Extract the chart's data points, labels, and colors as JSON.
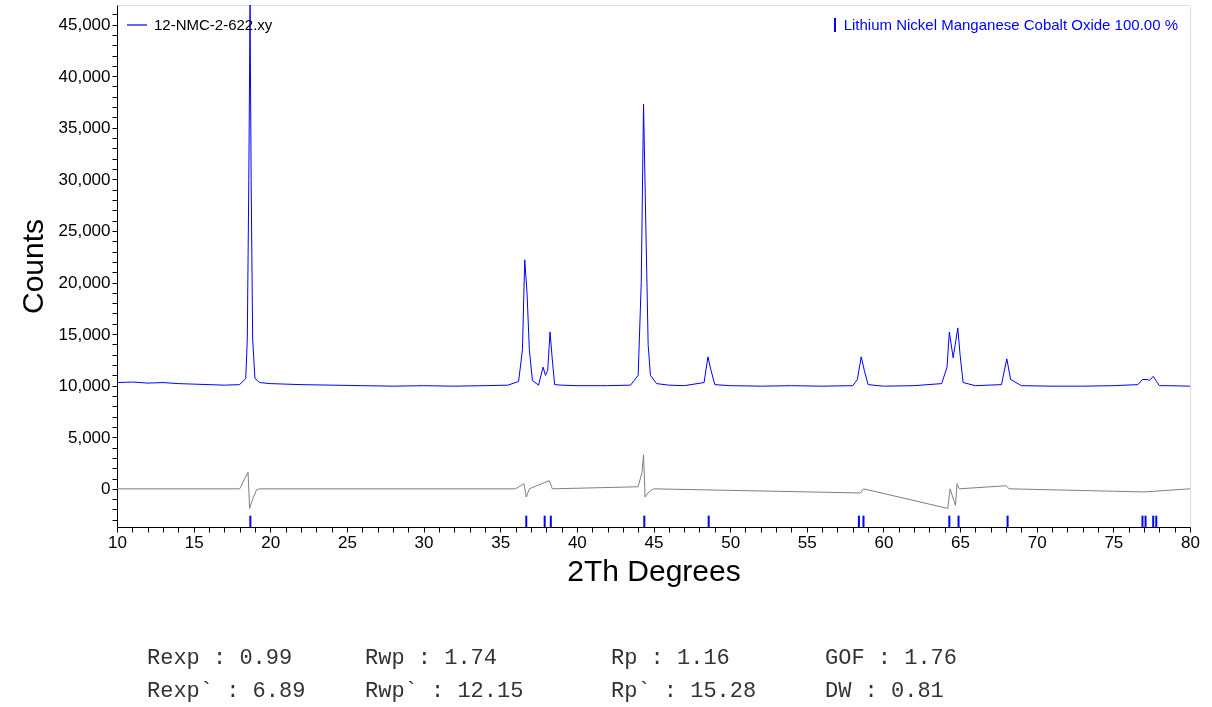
{
  "chart_data": {
    "type": "line",
    "xlabel": "2Th Degrees",
    "ylabel": "Counts",
    "xlim": [
      10,
      80
    ],
    "ylim": [
      -3700,
      46900
    ],
    "xticks": [
      10,
      {
        "value": 11,
        "label": null
      },
      {
        "value": 12,
        "label": null
      },
      {
        "value": 13,
        "label": null
      },
      {
        "value": 14,
        "label": null
      },
      15,
      {
        "value": 16,
        "label": null
      },
      {
        "value": 17,
        "label": null
      },
      {
        "value": 18,
        "label": null
      },
      {
        "value": 19,
        "label": null
      },
      20,
      {
        "value": 21,
        "label": null
      },
      {
        "value": 22,
        "label": null
      },
      {
        "value": 23,
        "label": null
      },
      {
        "value": 24,
        "label": null
      },
      25,
      {
        "value": 26,
        "label": null
      },
      {
        "value": 27,
        "label": null
      },
      {
        "value": 28,
        "label": null
      },
      {
        "value": 29,
        "label": null
      },
      30,
      {
        "value": 31,
        "label": null
      },
      {
        "value": 32,
        "label": null
      },
      {
        "value": 33,
        "label": null
      },
      {
        "value": 34,
        "label": null
      },
      35,
      {
        "value": 36,
        "label": null
      },
      {
        "value": 37,
        "label": null
      },
      {
        "value": 38,
        "label": null
      },
      {
        "value": 39,
        "label": null
      },
      40,
      {
        "value": 41,
        "label": null
      },
      {
        "value": 42,
        "label": null
      },
      {
        "value": 43,
        "label": null
      },
      {
        "value": 44,
        "label": null
      },
      45,
      {
        "value": 46,
        "label": null
      },
      {
        "value": 47,
        "label": null
      },
      {
        "value": 48,
        "label": null
      },
      {
        "value": 49,
        "label": null
      },
      50,
      {
        "value": 51,
        "label": null
      },
      {
        "value": 52,
        "label": null
      },
      {
        "value": 53,
        "label": null
      },
      {
        "value": 54,
        "label": null
      },
      55,
      {
        "value": 56,
        "label": null
      },
      {
        "value": 57,
        "label": null
      },
      {
        "value": 58,
        "label": null
      },
      {
        "value": 59,
        "label": null
      },
      60,
      {
        "value": 61,
        "label": null
      },
      {
        "value": 62,
        "label": null
      },
      {
        "value": 63,
        "label": null
      },
      {
        "value": 64,
        "label": null
      },
      65,
      {
        "value": 66,
        "label": null
      },
      {
        "value": 67,
        "label": null
      },
      {
        "value": 68,
        "label": null
      },
      {
        "value": 69,
        "label": null
      },
      70,
      {
        "value": 71,
        "label": null
      },
      {
        "value": 72,
        "label": null
      },
      {
        "value": 73,
        "label": null
      },
      {
        "value": 74,
        "label": null
      },
      75,
      {
        "value": 76,
        "label": null
      },
      {
        "value": 77,
        "label": null
      },
      {
        "value": 78,
        "label": null
      },
      {
        "value": 79,
        "label": null
      },
      80
    ],
    "yticks": [
      {
        "value": -3000,
        "label": null
      },
      {
        "value": -2000,
        "label": null
      },
      {
        "value": -1000,
        "label": null
      },
      {
        "value": 0,
        "label": "0"
      },
      {
        "value": 1000,
        "label": null
      },
      {
        "value": 2000,
        "label": null
      },
      {
        "value": 3000,
        "label": null
      },
      {
        "value": 4000,
        "label": null
      },
      {
        "value": 5000,
        "label": "5,000"
      },
      {
        "value": 6000,
        "label": null
      },
      {
        "value": 7000,
        "label": null
      },
      {
        "value": 8000,
        "label": null
      },
      {
        "value": 9000,
        "label": null
      },
      {
        "value": 10000,
        "label": "10,000"
      },
      {
        "value": 11000,
        "label": null
      },
      {
        "value": 12000,
        "label": null
      },
      {
        "value": 13000,
        "label": null
      },
      {
        "value": 14000,
        "label": null
      },
      {
        "value": 15000,
        "label": "15,000"
      },
      {
        "value": 16000,
        "label": null
      },
      {
        "value": 17000,
        "label": null
      },
      {
        "value": 18000,
        "label": null
      },
      {
        "value": 19000,
        "label": null
      },
      {
        "value": 20000,
        "label": "20,000"
      },
      {
        "value": 21000,
        "label": null
      },
      {
        "value": 22000,
        "label": null
      },
      {
        "value": 23000,
        "label": null
      },
      {
        "value": 24000,
        "label": null
      },
      {
        "value": 25000,
        "label": "25,000"
      },
      {
        "value": 26000,
        "label": null
      },
      {
        "value": 27000,
        "label": null
      },
      {
        "value": 28000,
        "label": null
      },
      {
        "value": 29000,
        "label": null
      },
      {
        "value": 30000,
        "label": "30,000"
      },
      {
        "value": 31000,
        "label": null
      },
      {
        "value": 32000,
        "label": null
      },
      {
        "value": 33000,
        "label": null
      },
      {
        "value": 34000,
        "label": null
      },
      {
        "value": 35000,
        "label": "35,000"
      },
      {
        "value": 36000,
        "label": null
      },
      {
        "value": 37000,
        "label": null
      },
      {
        "value": 38000,
        "label": null
      },
      {
        "value": 39000,
        "label": null
      },
      {
        "value": 40000,
        "label": "40,000"
      },
      {
        "value": 41000,
        "label": null
      },
      {
        "value": 42000,
        "label": null
      },
      {
        "value": 43000,
        "label": null
      },
      {
        "value": 44000,
        "label": null
      },
      {
        "value": 45000,
        "label": "45,000"
      },
      {
        "value": 46000,
        "label": null
      }
    ],
    "grid": false,
    "legend": "top left",
    "line_style": "solid",
    "marker": "none",
    "series": [
      {
        "name": "12-NMC-2-622.xy",
        "color": "#0000ff",
        "x": [
          10,
          11,
          12,
          13,
          14,
          15,
          16,
          17,
          18,
          18.4,
          18.5,
          18.6,
          18.68,
          18.75,
          18.85,
          19.0,
          19.3,
          20,
          22,
          24,
          26,
          28,
          30,
          32,
          34,
          35.5,
          36.2,
          36.45,
          36.6,
          36.75,
          36.9,
          37.1,
          37.5,
          37.8,
          37.95,
          38.1,
          38.25,
          38.4,
          38.55,
          39,
          40,
          42,
          43.5,
          44.0,
          44.2,
          44.35,
          44.5,
          44.65,
          44.8,
          45.2,
          46,
          47,
          48.3,
          48.55,
          48.75,
          49,
          50,
          52,
          54,
          56,
          58,
          58.3,
          58.55,
          58.75,
          59,
          60,
          62,
          63.8,
          64.15,
          64.3,
          64.55,
          64.85,
          65.0,
          65.2,
          66,
          67.7,
          68.05,
          68.3,
          69,
          71,
          73,
          75,
          76.6,
          76.9,
          77.2,
          77.35,
          77.6,
          78.0,
          78.5,
          80
        ],
        "values": [
          10300,
          10350,
          10250,
          10300,
          10200,
          10150,
          10100,
          10050,
          10100,
          10700,
          14500,
          30000,
          46900,
          30000,
          14500,
          10700,
          10300,
          10200,
          10100,
          10050,
          10000,
          9950,
          10000,
          9950,
          10000,
          10050,
          10400,
          13500,
          22200,
          19000,
          13500,
          10500,
          10050,
          11800,
          11000,
          11500,
          15200,
          12500,
          10100,
          10050,
          10000,
          10000,
          10050,
          11000,
          20000,
          37300,
          25500,
          14000,
          11000,
          10200,
          10050,
          10000,
          10300,
          12800,
          11500,
          10100,
          10000,
          9950,
          10000,
          9950,
          10000,
          10600,
          12800,
          11500,
          10100,
          9950,
          10000,
          10200,
          11800,
          15200,
          12700,
          15600,
          13000,
          10300,
          10000,
          10100,
          12600,
          10600,
          10000,
          9950,
          9950,
          10000,
          10100,
          10600,
          10600,
          10500,
          10900,
          10000,
          10000,
          9950
        ]
      },
      {
        "color": "#808080",
        "x": [
          10,
          18,
          18.55,
          18.65,
          18.85,
          19.1,
          19.3,
          36,
          36.55,
          36.7,
          36.9,
          38.2,
          38.4,
          44.0,
          44.25,
          44.35,
          44.45,
          44.7,
          45,
          58.5,
          58.7,
          64.2,
          64.35,
          64.7,
          64.8,
          64.95,
          68,
          68.2,
          77,
          80
        ],
        "values": [
          0,
          0,
          1600,
          -1900,
          -1000,
          -100,
          0,
          0,
          500,
          -800,
          0,
          800,
          0,
          200,
          1600,
          3300,
          -800,
          -300,
          0,
          -400,
          0,
          -1900,
          0,
          -1600,
          500,
          0,
          300,
          0,
          -300,
          0
        ]
      },
      {
        "name": "Lithium Nickel Manganese Cobalt Oxide  100.00 %",
        "color": "#0000ff",
        "type": "bar",
        "x": [
          18.7,
          36.7,
          37.9,
          38.3,
          44.4,
          48.6,
          58.4,
          58.7,
          64.3,
          64.9,
          68.1,
          76.9,
          77.1,
          77.6,
          77.8
        ],
        "base": [
          -3700,
          -3700,
          -3700,
          -3700,
          -3700,
          -3700,
          -3700,
          -3700,
          -3700,
          -3700,
          -3700,
          -3700,
          -3700,
          -3700,
          -3700
        ],
        "values": [
          1100,
          1100,
          1100,
          1100,
          1100,
          1100,
          1100,
          1100,
          1100,
          1100,
          1100,
          1100,
          1100,
          1100,
          1100
        ]
      }
    ],
    "annotations": [
      "Rexp : 0.99",
      "Rwp : 1.74",
      "Rp : 1.16",
      "GOF : 1.76",
      "Rexp` : 6.89",
      "Rwp` : 12.15",
      "Rp` : 15.28",
      "DW : 0.81"
    ]
  }
}
